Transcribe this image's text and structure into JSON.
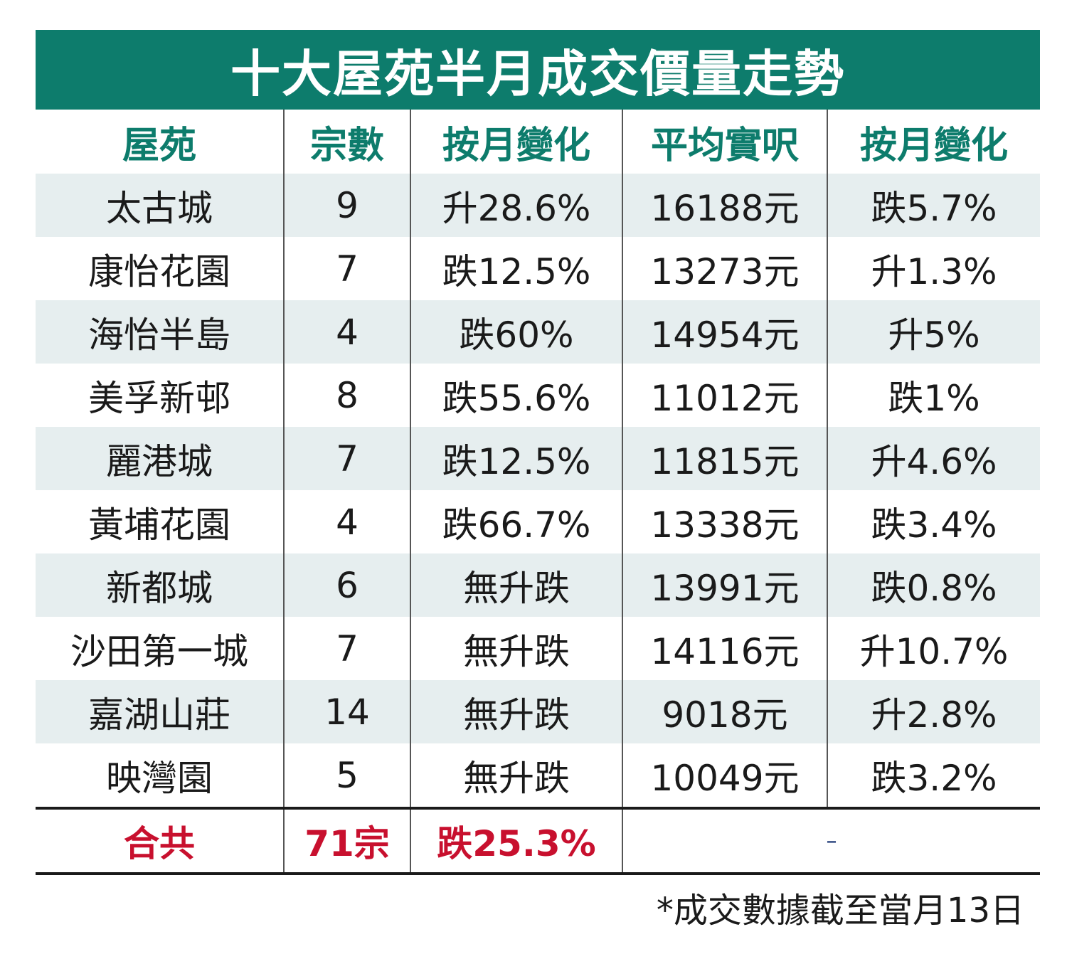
{
  "title": "十大屋苑半月成交價量走勢",
  "chart_data": {
    "type": "table",
    "title": "十大屋苑半月成交價量走勢",
    "columns": [
      "屋苑",
      "宗數",
      "按月變化",
      "平均實呎",
      "按月變化"
    ],
    "rows": [
      [
        "太古城",
        "9",
        "升28.6%",
        "16188元",
        "跌5.7%"
      ],
      [
        "康怡花園",
        "7",
        "跌12.5%",
        "13273元",
        "升1.3%"
      ],
      [
        "海怡半島",
        "4",
        "跌60%",
        "14954元",
        "升5%"
      ],
      [
        "美孚新邨",
        "8",
        "跌55.6%",
        "11012元",
        "跌1%"
      ],
      [
        "麗港城",
        "7",
        "跌12.5%",
        "11815元",
        "升4.6%"
      ],
      [
        "黃埔花園",
        "4",
        "跌66.7%",
        "13338元",
        "跌3.4%"
      ],
      [
        "新都城",
        "6",
        "無升跌",
        "13991元",
        "跌0.8%"
      ],
      [
        "沙田第一城",
        "7",
        "無升跌",
        "14116元",
        "升10.7%"
      ],
      [
        "嘉湖山莊",
        "14",
        "無升跌",
        "9018元",
        "升2.8%"
      ],
      [
        "映灣園",
        "5",
        "無升跌",
        "10049元",
        "跌3.2%"
      ]
    ],
    "total": [
      "合共",
      "71宗",
      "跌25.3%",
      "–"
    ],
    "footnote": "*成交數據截至當月13日"
  },
  "colors": {
    "header_bg": "#0d7c6c",
    "total_text": "#c8102e",
    "row_band": "#e6eeef"
  }
}
